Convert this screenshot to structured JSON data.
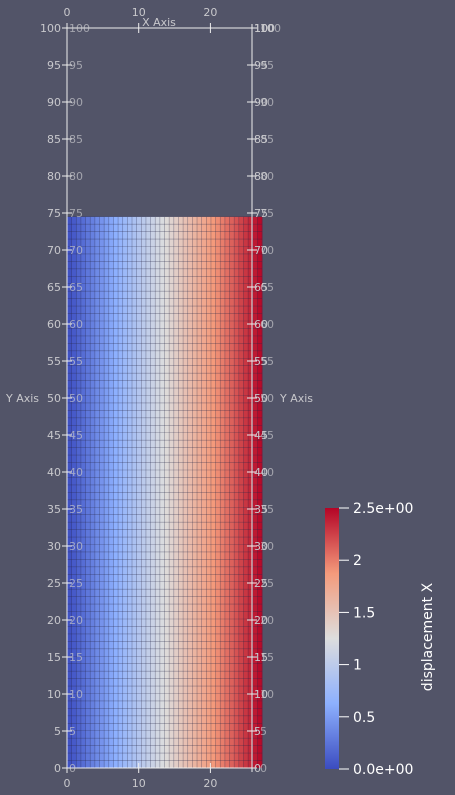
{
  "viewport": {
    "background": "#525468"
  },
  "axes": {
    "x_axis_title": "X Axis",
    "y_axis_title": "Y Axis",
    "x_ticks": [
      "0",
      "10",
      "20"
    ],
    "x_ticks_top": [
      "0",
      "10",
      "20",
      "10",
      "10"
    ],
    "y_ticks": [
      "0",
      "5",
      "10",
      "15",
      "20",
      "25",
      "30",
      "35",
      "40",
      "45",
      "50",
      "55",
      "60",
      "65",
      "70",
      "75",
      "80",
      "85",
      "90",
      "95",
      "100"
    ],
    "x_range": [
      0,
      25.8
    ],
    "y_range": [
      0,
      100
    ]
  },
  "mesh": {
    "x_extent": [
      0,
      27.2
    ],
    "y_extent": [
      0,
      74.5
    ],
    "cols": 42,
    "rows": 74,
    "color_scale": [
      "#3b4cc0",
      "#dddddd",
      "#b40426"
    ]
  },
  "color_legend": {
    "title": "displacement X",
    "tick_labels": [
      "2.5e+00",
      "2",
      "1.5",
      "1",
      "0.5",
      "0.0e+00"
    ],
    "range": [
      0,
      2.5
    ]
  }
}
